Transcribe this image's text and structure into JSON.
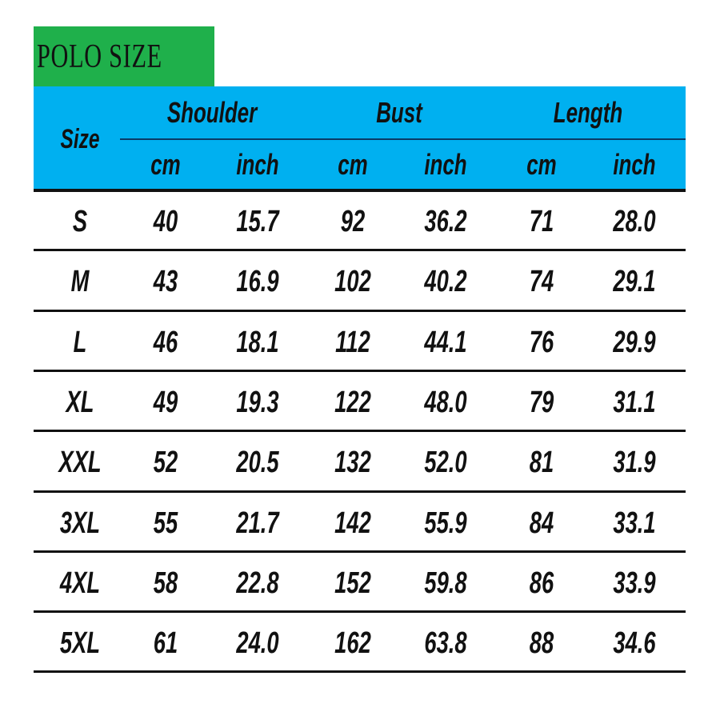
{
  "title": "POLO SIZE",
  "colors": {
    "title_bg": "#1fb04b",
    "header_bg": "#00b0f0"
  },
  "table": {
    "size_header": "Size",
    "groups": [
      "Shoulder",
      "Bust",
      "Length"
    ],
    "units": [
      "cm",
      "inch",
      "cm",
      "inch",
      "cm",
      "inch"
    ],
    "rows": [
      [
        "S",
        "40",
        "15.7",
        "92",
        "36.2",
        "71",
        "28.0"
      ],
      [
        "M",
        "43",
        "16.9",
        "102",
        "40.2",
        "74",
        "29.1"
      ],
      [
        "L",
        "46",
        "18.1",
        "112",
        "44.1",
        "76",
        "29.9"
      ],
      [
        "XL",
        "49",
        "19.3",
        "122",
        "48.0",
        "79",
        "31.1"
      ],
      [
        "XXL",
        "52",
        "20.5",
        "132",
        "52.0",
        "81",
        "31.9"
      ],
      [
        "3XL",
        "55",
        "21.7",
        "142",
        "55.9",
        "84",
        "33.1"
      ],
      [
        "4XL",
        "58",
        "22.8",
        "152",
        "59.8",
        "86",
        "33.9"
      ],
      [
        "5XL",
        "61",
        "24.0",
        "162",
        "63.8",
        "88",
        "34.6"
      ]
    ]
  }
}
